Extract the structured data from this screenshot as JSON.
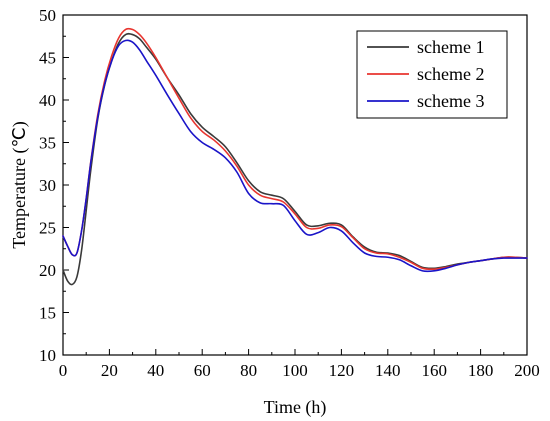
{
  "chart_data": {
    "type": "line",
    "title": "",
    "xlabel": "Time (h)",
    "ylabel": "Temperature (℃)",
    "xlim": [
      0,
      200
    ],
    "ylim": [
      10,
      50
    ],
    "xticks": [
      0,
      20,
      40,
      60,
      80,
      100,
      120,
      140,
      160,
      180,
      200
    ],
    "yticks": [
      10,
      15,
      20,
      25,
      30,
      35,
      40,
      45,
      50
    ],
    "grid": false,
    "legend_position": "top-right",
    "series": [
      {
        "name": "scheme 1",
        "color": "#3a3a3a",
        "points": [
          [
            0,
            20.0
          ],
          [
            2,
            18.7
          ],
          [
            4,
            18.3
          ],
          [
            6,
            19.2
          ],
          [
            8,
            22.3
          ],
          [
            10,
            27.0
          ],
          [
            12,
            31.8
          ],
          [
            15,
            37.8
          ],
          [
            18,
            41.8
          ],
          [
            21,
            44.6
          ],
          [
            24,
            46.7
          ],
          [
            27,
            47.7
          ],
          [
            30,
            47.7
          ],
          [
            33,
            47.2
          ],
          [
            36,
            46.2
          ],
          [
            40,
            44.8
          ],
          [
            45,
            42.6
          ],
          [
            50,
            40.6
          ],
          [
            55,
            38.4
          ],
          [
            60,
            36.8
          ],
          [
            65,
            35.7
          ],
          [
            70,
            34.5
          ],
          [
            75,
            32.6
          ],
          [
            80,
            30.5
          ],
          [
            85,
            29.2
          ],
          [
            90,
            28.8
          ],
          [
            95,
            28.4
          ],
          [
            100,
            26.9
          ],
          [
            105,
            25.3
          ],
          [
            110,
            25.2
          ],
          [
            115,
            25.5
          ],
          [
            120,
            25.3
          ],
          [
            125,
            23.9
          ],
          [
            130,
            22.7
          ],
          [
            135,
            22.1
          ],
          [
            140,
            22.0
          ],
          [
            145,
            21.7
          ],
          [
            150,
            21.0
          ],
          [
            155,
            20.3
          ],
          [
            160,
            20.2
          ],
          [
            165,
            20.4
          ],
          [
            170,
            20.7
          ],
          [
            175,
            20.9
          ],
          [
            180,
            21.1
          ],
          [
            185,
            21.3
          ],
          [
            190,
            21.5
          ],
          [
            195,
            21.5
          ],
          [
            200,
            21.4
          ]
        ]
      },
      {
        "name": "scheme 2",
        "color": "#e8352f",
        "points": [
          [
            0,
            24.0
          ],
          [
            2,
            22.8
          ],
          [
            4,
            21.8
          ],
          [
            6,
            22.0
          ],
          [
            8,
            24.6
          ],
          [
            10,
            28.4
          ],
          [
            12,
            32.8
          ],
          [
            15,
            38.3
          ],
          [
            18,
            42.3
          ],
          [
            21,
            45.2
          ],
          [
            24,
            47.3
          ],
          [
            27,
            48.3
          ],
          [
            30,
            48.3
          ],
          [
            33,
            47.7
          ],
          [
            36,
            46.7
          ],
          [
            40,
            45.0
          ],
          [
            45,
            42.6
          ],
          [
            50,
            40.2
          ],
          [
            55,
            37.9
          ],
          [
            60,
            36.3
          ],
          [
            65,
            35.3
          ],
          [
            70,
            34.0
          ],
          [
            75,
            32.2
          ],
          [
            80,
            30.0
          ],
          [
            85,
            28.8
          ],
          [
            90,
            28.4
          ],
          [
            95,
            28.0
          ],
          [
            100,
            26.6
          ],
          [
            105,
            25.0
          ],
          [
            110,
            24.9
          ],
          [
            115,
            25.3
          ],
          [
            120,
            25.1
          ],
          [
            125,
            23.8
          ],
          [
            130,
            22.5
          ],
          [
            135,
            22.0
          ],
          [
            140,
            21.9
          ],
          [
            145,
            21.5
          ],
          [
            150,
            20.9
          ],
          [
            155,
            20.2
          ],
          [
            160,
            20.1
          ],
          [
            165,
            20.3
          ],
          [
            170,
            20.6
          ],
          [
            175,
            20.9
          ],
          [
            180,
            21.1
          ],
          [
            185,
            21.3
          ],
          [
            190,
            21.5
          ],
          [
            195,
            21.5
          ],
          [
            200,
            21.4
          ]
        ]
      },
      {
        "name": "scheme 3",
        "color": "#1a14c8",
        "points": [
          [
            0,
            24.0
          ],
          [
            2,
            22.8
          ],
          [
            4,
            21.8
          ],
          [
            6,
            22.0
          ],
          [
            8,
            24.6
          ],
          [
            10,
            28.4
          ],
          [
            12,
            32.7
          ],
          [
            15,
            38.0
          ],
          [
            18,
            41.9
          ],
          [
            21,
            44.6
          ],
          [
            24,
            46.4
          ],
          [
            27,
            47.0
          ],
          [
            30,
            46.8
          ],
          [
            33,
            45.9
          ],
          [
            36,
            44.6
          ],
          [
            40,
            42.9
          ],
          [
            45,
            40.6
          ],
          [
            50,
            38.4
          ],
          [
            55,
            36.3
          ],
          [
            60,
            35.0
          ],
          [
            65,
            34.2
          ],
          [
            70,
            33.2
          ],
          [
            75,
            31.5
          ],
          [
            80,
            29.0
          ],
          [
            85,
            27.9
          ],
          [
            90,
            27.8
          ],
          [
            95,
            27.6
          ],
          [
            100,
            25.8
          ],
          [
            105,
            24.2
          ],
          [
            110,
            24.4
          ],
          [
            115,
            25.0
          ],
          [
            120,
            24.6
          ],
          [
            125,
            23.2
          ],
          [
            130,
            22.0
          ],
          [
            135,
            21.6
          ],
          [
            140,
            21.5
          ],
          [
            145,
            21.2
          ],
          [
            150,
            20.5
          ],
          [
            155,
            19.9
          ],
          [
            160,
            19.9
          ],
          [
            165,
            20.2
          ],
          [
            170,
            20.6
          ],
          [
            175,
            20.9
          ],
          [
            180,
            21.1
          ],
          [
            185,
            21.3
          ],
          [
            190,
            21.4
          ],
          [
            195,
            21.4
          ],
          [
            200,
            21.4
          ]
        ]
      }
    ]
  }
}
